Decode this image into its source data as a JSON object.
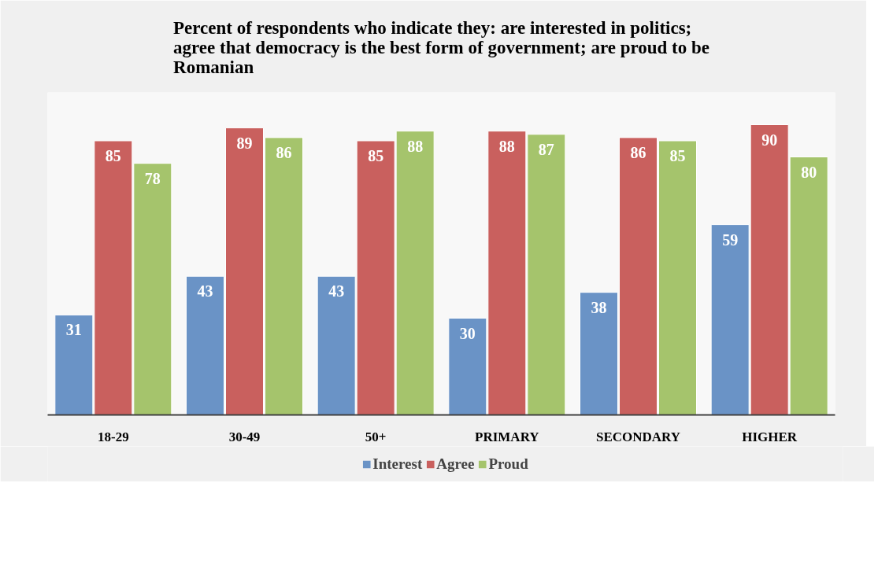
{
  "chart_data": {
    "type": "bar",
    "title": "Percent of respondents who indicate they: are interested in politics; agree that democracy is the best form of government; are proud to be Romanian",
    "categories": [
      "18-29",
      "30-49",
      "50+",
      "PRIMARY",
      "SECONDARY",
      "HIGHER"
    ],
    "series": [
      {
        "name": "Interest",
        "color": "#6a93c6",
        "values": [
          31,
          43,
          43,
          30,
          38,
          59
        ]
      },
      {
        "name": "Agree",
        "color": "#c9605e",
        "values": [
          85,
          89,
          85,
          88,
          86,
          90
        ]
      },
      {
        "name": "Proud",
        "color": "#a5c46c",
        "values": [
          78,
          86,
          88,
          87,
          85,
          80
        ]
      }
    ],
    "ylim": [
      0,
      100
    ],
    "data_labels": true,
    "legend": "bottom",
    "grid": false,
    "tick_labels": "x"
  }
}
